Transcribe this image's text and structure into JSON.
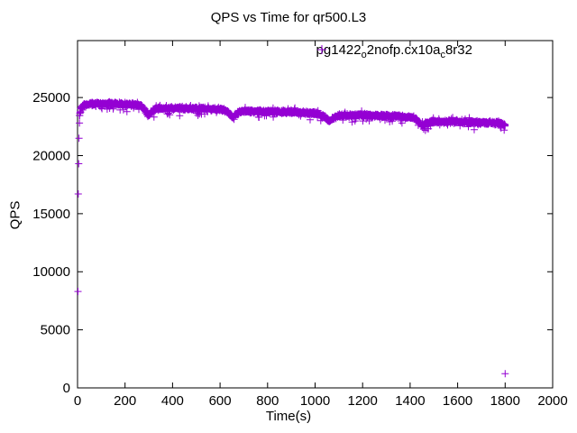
{
  "chart_data": {
    "type": "scatter",
    "title": "QPS vs Time for qr500.L3",
    "xlabel": "Time(s)",
    "ylabel": "QPS",
    "xlim": [
      0,
      2000
    ],
    "ylim": [
      0,
      29900
    ],
    "x_ticks": [
      0,
      200,
      400,
      600,
      800,
      1000,
      1200,
      1400,
      1600,
      1800,
      2000
    ],
    "y_ticks": [
      0,
      5000,
      10000,
      15000,
      20000,
      25000
    ],
    "grid": false,
    "legend_position": "top-right-inside",
    "marker": "plus",
    "marker_color": "#9400D3",
    "frame_color": "#000000",
    "background_color": "#FFFFFF",
    "series": [
      {
        "name": "pg1422_o2nofp.cx10a_c8r32",
        "name_segments": [
          {
            "text": "pg1422",
            "sub": false
          },
          {
            "text": "o",
            "sub": true
          },
          {
            "text": "2nofp.cx10a",
            "sub": false
          },
          {
            "text": "c",
            "sub": true
          },
          {
            "text": "8r32",
            "sub": false
          }
        ],
        "sample_interval_s": 1,
        "time_range_s": [
          0,
          1800
        ],
        "qps_band_keypoints": [
          [
            8,
            23400
          ],
          [
            15,
            24200
          ],
          [
            40,
            24420
          ],
          [
            120,
            24480
          ],
          [
            200,
            24420
          ],
          [
            262,
            24330
          ],
          [
            283,
            23950
          ],
          [
            298,
            23430
          ],
          [
            310,
            23720
          ],
          [
            328,
            24060
          ],
          [
            430,
            24080
          ],
          [
            540,
            24030
          ],
          [
            618,
            23960
          ],
          [
            640,
            23650
          ],
          [
            654,
            23230
          ],
          [
            668,
            23620
          ],
          [
            695,
            23820
          ],
          [
            820,
            23790
          ],
          [
            940,
            23710
          ],
          [
            1005,
            23640
          ],
          [
            1038,
            23350
          ],
          [
            1060,
            22960
          ],
          [
            1078,
            23260
          ],
          [
            1105,
            23470
          ],
          [
            1240,
            23460
          ],
          [
            1360,
            23370
          ],
          [
            1418,
            23260
          ],
          [
            1437,
            22900
          ],
          [
            1450,
            22590
          ],
          [
            1463,
            22790
          ],
          [
            1500,
            22930
          ],
          [
            1620,
            22900
          ],
          [
            1730,
            22840
          ],
          [
            1783,
            22780
          ],
          [
            1800,
            22640
          ]
        ],
        "qps_noise_halfwidth": 200,
        "outlier_points": [
          [
            2,
            8300
          ],
          [
            3,
            16700
          ],
          [
            5,
            19300
          ],
          [
            6,
            21500
          ],
          [
            8,
            22800
          ],
          [
            1800,
            1230
          ]
        ]
      }
    ]
  }
}
